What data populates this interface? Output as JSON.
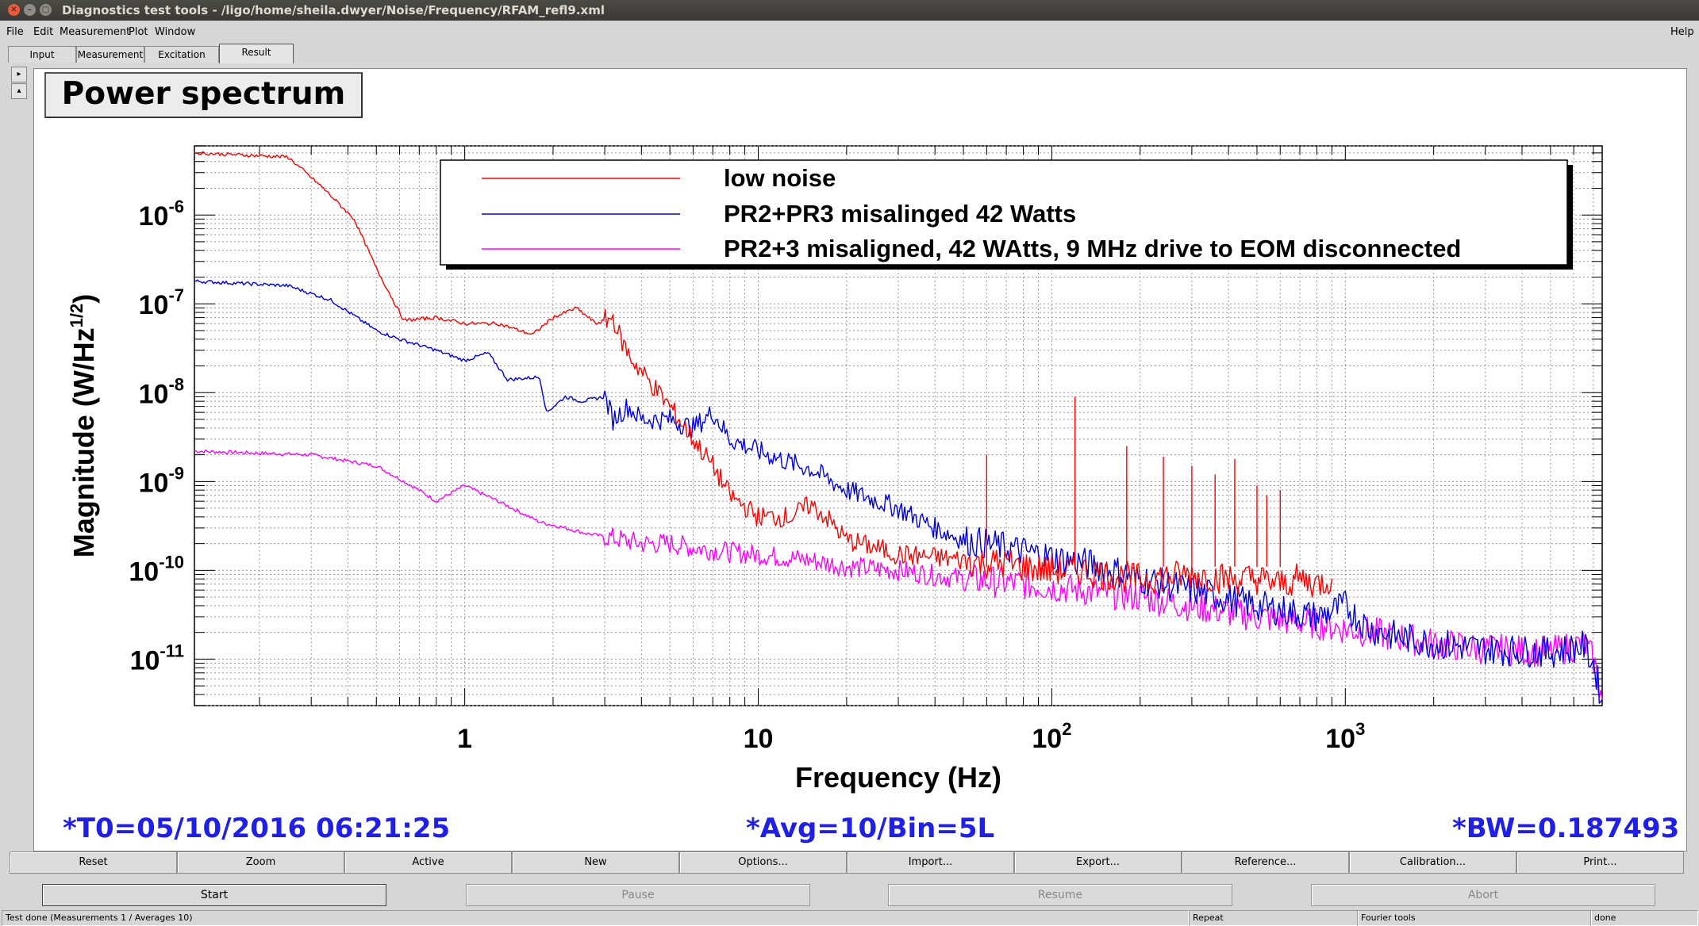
{
  "window": {
    "title": "Diagnostics test tools - /ligo/home/sheila.dwyer/Noise/Frequency/RFAM_refl9.xml"
  },
  "menu": {
    "file": "File",
    "edit": "Edit",
    "measurement": "Measurement",
    "plot": "Plot",
    "window": "Window",
    "help": "Help"
  },
  "tabs": [
    "Input",
    "Measurement",
    "Excitation",
    "Result"
  ],
  "plot": {
    "title": "Power spectrum",
    "legend": [
      "low noise",
      "PR2+PR3 misalinged 42 Watts",
      "PR2+3 misaligned, 42 WAtts, 9 MHz drive to EOM disconnected"
    ],
    "info_left": "*T0=05/10/2016 06:21:25",
    "info_center": "*Avg=10/Bin=5L",
    "info_right": "*BW=0.187493"
  },
  "chart_data": {
    "type": "line",
    "xlabel": "Frequency (Hz)",
    "ylabel": "Magnitude (W/Hz",
    "ylabel_sup": "1/2",
    "ylabel_close": ")",
    "x_scale": "log",
    "y_scale": "log",
    "xlim": [
      0.12,
      7500
    ],
    "ylim": [
      3e-12,
      6e-06
    ],
    "x_ticks": [
      {
        "base": "1",
        "sup": ""
      },
      {
        "base": "10",
        "sup": ""
      },
      {
        "base": "10",
        "sup": "2"
      },
      {
        "base": "10",
        "sup": "3"
      }
    ],
    "y_ticks": [
      {
        "base": "10",
        "sup": "-6"
      },
      {
        "base": "10",
        "sup": "-7"
      },
      {
        "base": "10",
        "sup": "-8"
      },
      {
        "base": "10",
        "sup": "-9"
      },
      {
        "base": "10",
        "sup": "-10"
      },
      {
        "base": "10",
        "sup": "-11"
      }
    ],
    "grid": true,
    "legend_position": "top-right",
    "colors": [
      "#ff0000",
      "#0000dd",
      "#ff00ff"
    ],
    "series": [
      {
        "name": "low noise",
        "x": [
          0.12,
          0.25,
          0.33,
          0.42,
          0.5,
          0.62,
          0.8,
          1.0,
          1.3,
          1.7,
          2.0,
          2.4,
          2.8,
          3.2,
          3.4,
          3.7,
          4.2,
          5,
          6,
          7,
          8,
          10,
          13,
          15,
          17,
          20,
          25,
          30,
          40,
          50,
          60,
          70,
          80,
          100,
          130,
          150,
          200,
          300,
          400,
          500,
          600,
          700,
          800,
          900
        ],
        "y": [
          5e-06,
          4.5e-06,
          2e-06,
          9e-07,
          2.5e-07,
          6.5e-08,
          7e-08,
          6e-08,
          6e-08,
          4.5e-08,
          7e-08,
          9e-08,
          6e-08,
          7e-08,
          4e-08,
          2.4e-08,
          1.4e-08,
          7e-09,
          3e-09,
          1.5e-09,
          7e-10,
          4e-10,
          4e-10,
          5.5e-10,
          4e-10,
          2.2e-10,
          1.8e-10,
          1.5e-10,
          1.4e-10,
          1.3e-10,
          1.2e-10,
          1.2e-10,
          1.1e-10,
          1e-10,
          1e-10,
          9e-11,
          8e-11,
          9e-11,
          8e-11,
          8e-11,
          7e-11,
          8e-11,
          7e-11,
          8e-11
        ]
      },
      {
        "name": "PR2+PR3 misalinged 42 Watts",
        "x": [
          0.12,
          0.25,
          0.35,
          0.5,
          0.6,
          0.8,
          1.0,
          1.2,
          1.4,
          1.8,
          1.9,
          2.2,
          2.5,
          3.0,
          3.2,
          3.6,
          4,
          5,
          6,
          7,
          8,
          10,
          13,
          15,
          20,
          30,
          40,
          50,
          70,
          100,
          150,
          200,
          300,
          500,
          800,
          1000,
          1200,
          1500,
          2000,
          3000,
          5000,
          6500,
          7000,
          7500
        ],
        "y": [
          1.8e-07,
          1.6e-07,
          1.1e-07,
          5e-08,
          4e-08,
          3e-08,
          2.3e-08,
          2.8e-08,
          1.4e-08,
          1.5e-08,
          6e-09,
          9e-09,
          8e-09,
          9e-09,
          5e-09,
          7e-09,
          5e-09,
          5e-09,
          4e-09,
          6e-09,
          3e-09,
          2.2e-09,
          1.6e-09,
          1.4e-09,
          8e-10,
          5e-10,
          3e-10,
          2.2e-10,
          1.8e-10,
          1.4e-10,
          1.1e-10,
          8e-11,
          6e-11,
          4e-11,
          3e-11,
          4e-11,
          2.2e-11,
          1.8e-11,
          1.5e-11,
          1.3e-11,
          1.2e-11,
          1.4e-11,
          9e-12,
          3.5e-12
        ]
      },
      {
        "name": "PR2+3 misaligned, 42 WAtts, 9 MHz drive to EOM disconnected",
        "x": [
          0.12,
          0.3,
          0.5,
          0.7,
          0.8,
          1.0,
          1.3,
          1.8,
          2.2,
          2.6,
          3.0,
          4,
          5,
          6,
          8,
          10,
          15,
          20,
          30,
          50,
          80,
          100,
          200,
          300,
          500,
          800,
          1000,
          1500,
          2000,
          3000,
          5000,
          6500,
          7000,
          7500
        ],
        "y": [
          2.2e-09,
          2e-09,
          1.5e-09,
          8e-10,
          6e-10,
          9e-10,
          6e-10,
          3.5e-10,
          3e-10,
          2.6e-10,
          2.4e-10,
          2e-10,
          2e-10,
          1.8e-10,
          1.6e-10,
          1.5e-10,
          1.3e-10,
          1.1e-10,
          1e-10,
          8e-11,
          7e-11,
          6.5e-11,
          5e-11,
          4e-11,
          3e-11,
          2.5e-11,
          2.2e-11,
          1.8e-11,
          1.5e-11,
          1.3e-11,
          1.2e-11,
          1.5e-11,
          1e-11,
          3.5e-12
        ]
      }
    ],
    "spikes": [
      {
        "x": 60,
        "y": 2e-09
      },
      {
        "x": 120,
        "y": 9e-09
      },
      {
        "x": 180,
        "y": 2.5e-09
      },
      {
        "x": 240,
        "y": 1.9e-09
      },
      {
        "x": 300,
        "y": 1.5e-09
      },
      {
        "x": 360,
        "y": 1.2e-09
      },
      {
        "x": 420,
        "y": 1.8e-09
      },
      {
        "x": 500,
        "y": 9e-10
      },
      {
        "x": 540,
        "y": 7e-10
      },
      {
        "x": 600,
        "y": 8e-10
      }
    ]
  },
  "buttons": [
    "Reset",
    "Zoom",
    "Active",
    "New",
    "Options...",
    "Import...",
    "Export...",
    "Reference...",
    "Calibration...",
    "Print..."
  ],
  "controls": {
    "start": "Start",
    "pause": "Pause",
    "resume": "Resume",
    "abort": "Abort"
  },
  "status": {
    "message": "Test done (Measurements 1 / Averages 10)",
    "repeat": "Repeat",
    "tools": "Fourier tools",
    "state": "done"
  }
}
